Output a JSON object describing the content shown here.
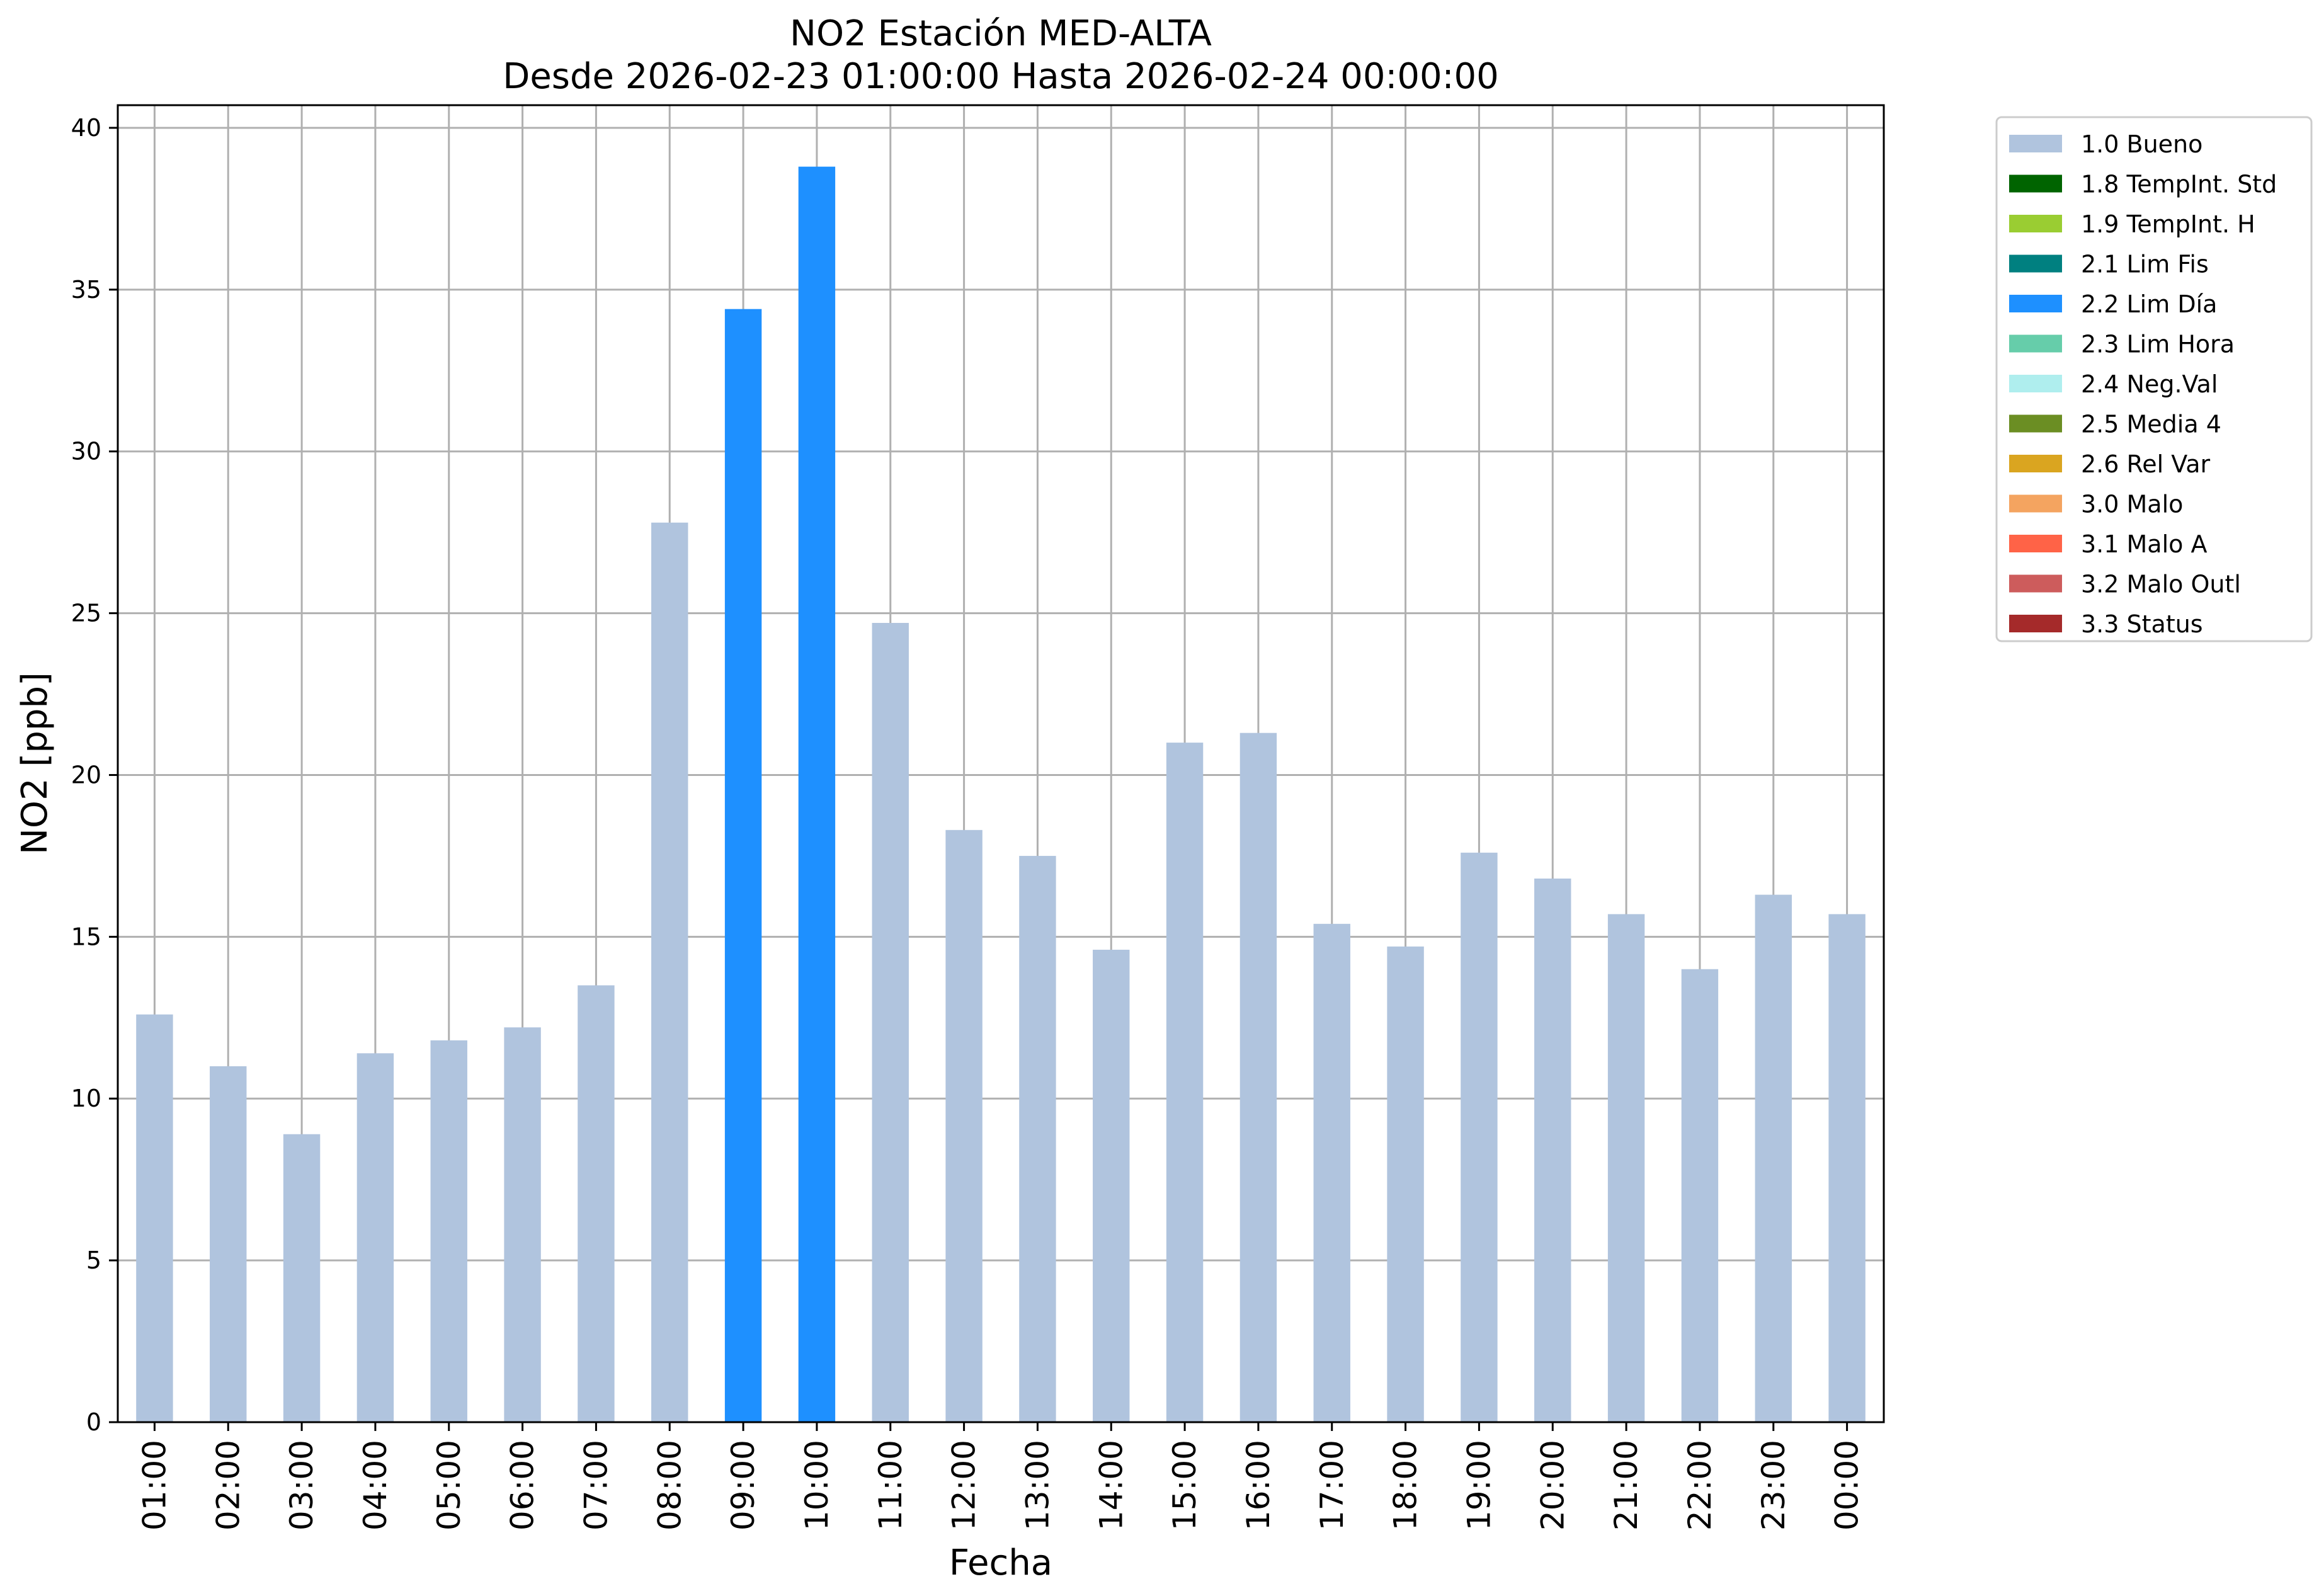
{
  "chart_data": {
    "type": "bar",
    "title": "NO2 Estación MED-ALTA",
    "subtitle": "Desde 2026-02-23 01:00:00 Hasta 2026-02-24 00:00:00",
    "xlabel": "Fecha",
    "ylabel": "NO2 [ppb]",
    "ylim": [
      0,
      40.7
    ],
    "yticks": [
      "0",
      "5",
      "10",
      "15",
      "20",
      "25",
      "30",
      "35",
      "40"
    ],
    "grid": true,
    "legend_position": "outside top-right",
    "categories": [
      "01:00",
      "02:00",
      "03:00",
      "04:00",
      "05:00",
      "06:00",
      "07:00",
      "08:00",
      "09:00",
      "10:00",
      "11:00",
      "12:00",
      "13:00",
      "14:00",
      "15:00",
      "16:00",
      "17:00",
      "18:00",
      "19:00",
      "20:00",
      "21:00",
      "22:00",
      "23:00",
      "00:00"
    ],
    "values": [
      12.6,
      11.0,
      8.9,
      11.4,
      11.8,
      12.2,
      13.5,
      27.8,
      34.4,
      38.8,
      24.7,
      18.3,
      17.5,
      14.6,
      21.0,
      21.3,
      15.4,
      14.7,
      17.6,
      16.8,
      15.7,
      14.0,
      16.3,
      15.7
    ],
    "flags": [
      "1.0 Bueno",
      "1.0 Bueno",
      "1.0 Bueno",
      "1.0 Bueno",
      "1.0 Bueno",
      "1.0 Bueno",
      "1.0 Bueno",
      "1.0 Bueno",
      "2.2 Lim Día",
      "2.2 Lim Día",
      "1.0 Bueno",
      "1.0 Bueno",
      "1.0 Bueno",
      "1.0 Bueno",
      "1.0 Bueno",
      "1.0 Bueno",
      "1.0 Bueno",
      "1.0 Bueno",
      "1.0 Bueno",
      "1.0 Bueno",
      "1.0 Bueno",
      "1.0 Bueno",
      "1.0 Bueno",
      "1.0 Bueno"
    ],
    "legend": [
      {
        "label": "1.0 Bueno",
        "color": "#b0c4de"
      },
      {
        "label": "1.8 TempInt. Std",
        "color": "#006400"
      },
      {
        "label": "1.9 TempInt. H",
        "color": "#9acd32"
      },
      {
        "label": "2.1 Lim Fis",
        "color": "#008080"
      },
      {
        "label": "2.2 Lim Día",
        "color": "#1e90ff"
      },
      {
        "label": "2.3 Lim Hora",
        "color": "#66cdaa"
      },
      {
        "label": "2.4 Neg.Val",
        "color": "#afeeee"
      },
      {
        "label": "2.5 Media 4",
        "color": "#6b8e23"
      },
      {
        "label": "2.6 Rel Var",
        "color": "#daa520"
      },
      {
        "label": "3.0 Malo",
        "color": "#f4a460"
      },
      {
        "label": "3.1 Malo A",
        "color": "#ff6347"
      },
      {
        "label": "3.2 Malo Outl",
        "color": "#cd5c5c"
      },
      {
        "label": "3.3 Status",
        "color": "#a52a2a"
      }
    ],
    "grid_color": "#b0b0b0"
  }
}
